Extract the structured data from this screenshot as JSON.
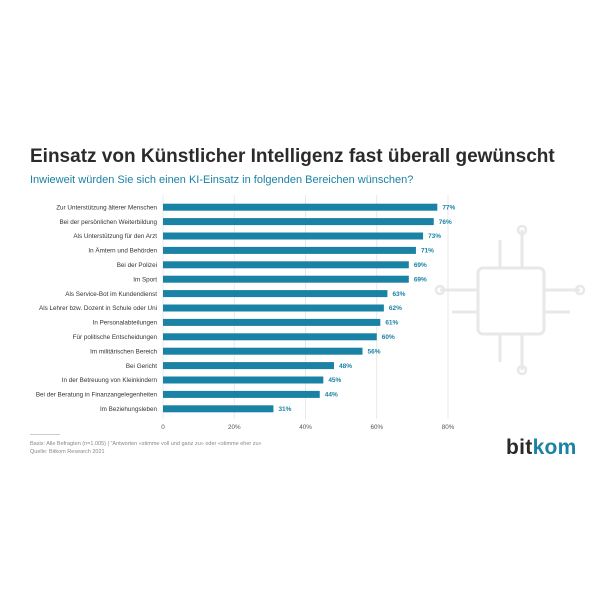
{
  "title": "Einsatz von Künstlicher Intelligenz fast überall gewünscht",
  "subtitle": "Inwieweit würden Sie sich einen KI-Einsatz in folgenden Bereichen wünschen?",
  "notes": {
    "line1": "Basis: Alle Befragten (n=1.005) | \"Antworten «stimme voll und ganz zu» oder «stimme eher zu»",
    "line2": "Quelle: Bitkom Research 2021"
  },
  "logo": {
    "part1": "bit",
    "part2": "kom"
  },
  "colors": {
    "bar": "#1a82a4",
    "label": "#1a82a4",
    "text": "#333333",
    "grid": "#e3e3e3",
    "deco": "#e8e8e8"
  },
  "chart_data": {
    "type": "bar",
    "orientation": "horizontal",
    "categories": [
      "Zur Unterstützung älterer Menschen",
      "Bei der persönlichen Weiterbildung",
      "Als Unterstützung für den Arzt",
      "In Ämtern und Behörden",
      "Bei der Polizei",
      "Im Sport",
      "Als Service-Bot im Kundendienst",
      "Als Lehrer bzw. Dozent in Schule oder Uni",
      "In Personalabteilungen",
      "Für politische Entscheidungen",
      "Im militärischen Bereich",
      "Bei Gericht",
      "In der Betreuung von Kleinkindern",
      "Bei der Beratung in Finanzangelegenheiten",
      "Im Beziehungsleben"
    ],
    "values": [
      77,
      76,
      73,
      71,
      69,
      69,
      63,
      62,
      61,
      60,
      56,
      48,
      45,
      44,
      31
    ],
    "value_labels": [
      "77%",
      "76%",
      "73%",
      "71%",
      "69%",
      "69%",
      "63%",
      "62%",
      "61%",
      "60%",
      "56%",
      "48%",
      "45%",
      "44%",
      "31%"
    ],
    "xlim": [
      0,
      80
    ],
    "xticks": [
      0,
      20,
      40,
      60,
      80
    ],
    "xtick_labels": [
      "0",
      "20%",
      "40%",
      "60%",
      "80%"
    ],
    "grid": true
  }
}
